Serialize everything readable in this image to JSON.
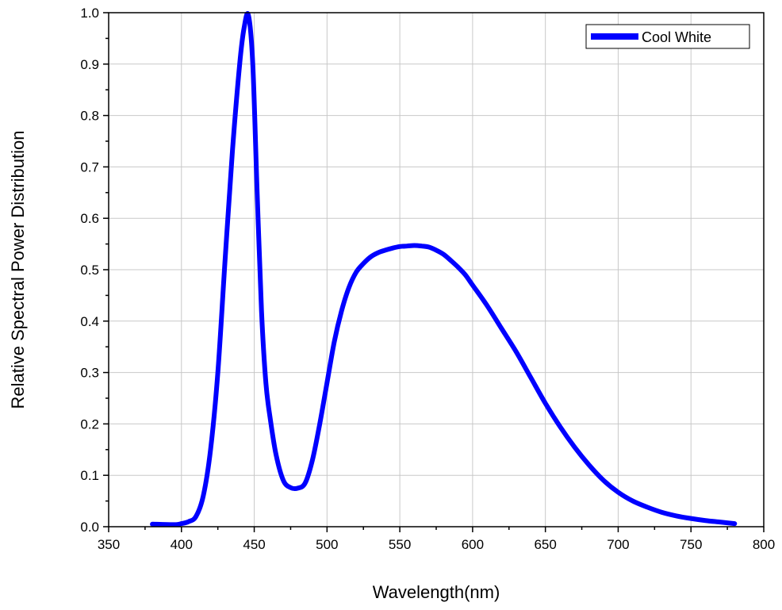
{
  "chart_data": {
    "type": "line",
    "xlabel": "Wavelength(nm)",
    "ylabel": "Relative Spectral Power Distribution",
    "xlim": [
      350,
      800
    ],
    "ylim": [
      0.0,
      1.0
    ],
    "xticks": [
      "350",
      "400",
      "450",
      "500",
      "550",
      "600",
      "650",
      "700",
      "750",
      "800"
    ],
    "yticks": [
      "0.0",
      "0.1",
      "0.2",
      "0.3",
      "0.4",
      "0.5",
      "0.6",
      "0.7",
      "0.8",
      "0.9",
      "1.0"
    ],
    "grid": true,
    "legend_position": "top-right",
    "series": [
      {
        "name": "Cool White",
        "color": "#0000ff",
        "x": [
          380,
          395,
          400,
          405,
          410,
          415,
          420,
          425,
          430,
          435,
          440,
          443,
          446,
          449,
          452,
          455,
          458,
          461,
          465,
          470,
          475,
          480,
          485,
          490,
          495,
          500,
          505,
          510,
          515,
          520,
          525,
          530,
          535,
          540,
          545,
          550,
          555,
          560,
          565,
          570,
          575,
          580,
          585,
          590,
          595,
          600,
          610,
          620,
          630,
          640,
          650,
          660,
          670,
          680,
          690,
          700,
          710,
          720,
          730,
          740,
          750,
          760,
          770,
          780
        ],
        "y": [
          0.005,
          0.004,
          0.006,
          0.01,
          0.02,
          0.06,
          0.15,
          0.3,
          0.52,
          0.73,
          0.9,
          0.97,
          0.995,
          0.9,
          0.65,
          0.42,
          0.28,
          0.21,
          0.14,
          0.09,
          0.076,
          0.075,
          0.085,
          0.13,
          0.2,
          0.28,
          0.36,
          0.42,
          0.465,
          0.495,
          0.512,
          0.525,
          0.533,
          0.538,
          0.542,
          0.545,
          0.546,
          0.547,
          0.546,
          0.544,
          0.538,
          0.53,
          0.518,
          0.505,
          0.49,
          0.47,
          0.43,
          0.385,
          0.34,
          0.29,
          0.24,
          0.195,
          0.155,
          0.12,
          0.09,
          0.067,
          0.05,
          0.038,
          0.028,
          0.021,
          0.016,
          0.012,
          0.009,
          0.006
        ]
      }
    ]
  }
}
